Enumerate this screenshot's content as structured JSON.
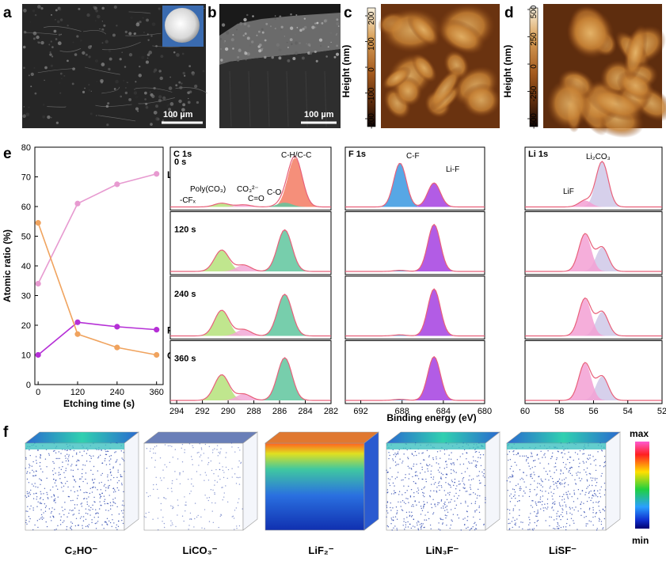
{
  "panel_labels": {
    "a": "a",
    "b": "b",
    "c": "c",
    "d": "d",
    "e": "e",
    "f": "f"
  },
  "panel_a": {
    "scale_bar": "100 µm"
  },
  "panel_b": {
    "scale_bar": "100 µm"
  },
  "panel_c": {
    "colorbar_label": "Height (nm)",
    "ticks": [
      "200",
      "100",
      "0",
      "-100",
      "-200"
    ]
  },
  "panel_d": {
    "colorbar_label": "Height (nm)",
    "ticks": [
      "500",
      "250",
      "0",
      "-250",
      "-500"
    ]
  },
  "chart_data": [
    {
      "type": "line",
      "xlabel": "Etching time (s)",
      "ylabel": "Atomic ratio (%)",
      "x": [
        0,
        120,
        240,
        360
      ],
      "xlim": [
        -10,
        380
      ],
      "ylim": [
        0,
        80
      ],
      "xticks": [
        "0",
        "120",
        "240",
        "360"
      ],
      "yticks": [
        "0",
        "10",
        "20",
        "30",
        "40",
        "50",
        "60",
        "70",
        "80"
      ],
      "series": [
        {
          "name": "Li",
          "values": [
            34,
            61,
            67.5,
            71
          ],
          "color": "#e79ad0"
        },
        {
          "name": "F",
          "values": [
            10,
            21,
            19.5,
            18.5
          ],
          "color": "#b52fd6"
        },
        {
          "name": "C",
          "values": [
            54.5,
            17,
            12.5,
            10
          ],
          "color": "#f0a35e"
        }
      ]
    },
    {
      "type": "area",
      "spectrum": "C 1s",
      "xlim": [
        294.5,
        282
      ],
      "xticks": [
        "294",
        "292",
        "290",
        "288",
        "286",
        "284",
        "282"
      ],
      "times": [
        "0 s",
        "120 s",
        "240 s",
        "360 s"
      ],
      "peak_labels": [
        "C-H/C-C",
        "Poly(CO₃)",
        "CO₃²⁻",
        "-CFₓ",
        "C=O",
        "C-O"
      ],
      "components": [
        {
          "name": "C-H/C-C",
          "center": 284.8,
          "color": "#f37b63",
          "heights": [
            0.92,
            0,
            0,
            0
          ]
        },
        {
          "name": "C-O",
          "center": 285.6,
          "color": "#5fc59d",
          "heights": [
            0.08,
            0.78,
            0.78,
            0.8
          ]
        },
        {
          "name": "CO3",
          "center": 290.5,
          "color": "#b5e27a",
          "heights": [
            0.07,
            0.4,
            0.48,
            0.48
          ]
        },
        {
          "name": "C=O",
          "center": 288.8,
          "color": "#f2a8d6",
          "heights": [
            0.04,
            0.12,
            0.12,
            0.12
          ]
        }
      ]
    },
    {
      "type": "area",
      "spectrum": "F 1s",
      "xlim": [
        693.5,
        680
      ],
      "xticks": [
        "692",
        "688",
        "684",
        "680"
      ],
      "peak_labels": [
        "C-F",
        "Li-F"
      ],
      "components": [
        {
          "name": "C-F",
          "center": 688.2,
          "color": "#3a98e0",
          "heights": [
            0.82,
            0.02,
            0.02,
            0.02
          ]
        },
        {
          "name": "Li-F",
          "center": 684.9,
          "color": "#a53fe0",
          "heights": [
            0.45,
            0.88,
            0.88,
            0.82
          ]
        }
      ]
    },
    {
      "type": "area",
      "spectrum": "Li 1s",
      "xlim": [
        60,
        52
      ],
      "xticks": [
        "60",
        "58",
        "56",
        "54",
        "52"
      ],
      "peak_labels": [
        "Li₂CO₃",
        "LiF"
      ],
      "components": [
        {
          "name": "Li2CO3",
          "center": 55.5,
          "color": "#cfc8e8",
          "heights": [
            0.85,
            0.45,
            0.45,
            0.45
          ]
        },
        {
          "name": "LiF",
          "center": 56.5,
          "color": "#f3a0d4",
          "heights": [
            0.12,
            0.7,
            0.7,
            0.7
          ]
        }
      ]
    }
  ],
  "xps_shared": {
    "xlabel": "Binding energy (eV)"
  },
  "panel_f": {
    "colorbar_max": "max",
    "colorbar_min": "min",
    "cubes": [
      {
        "label": "C₂HO⁻",
        "style": "layer"
      },
      {
        "label": "LiCO₃⁻",
        "style": "sparse"
      },
      {
        "label": "LiF₂⁻",
        "style": "bulk"
      },
      {
        "label": "LiN₃F⁻",
        "style": "layer"
      },
      {
        "label": "LiSF⁻",
        "style": "layer"
      }
    ]
  }
}
